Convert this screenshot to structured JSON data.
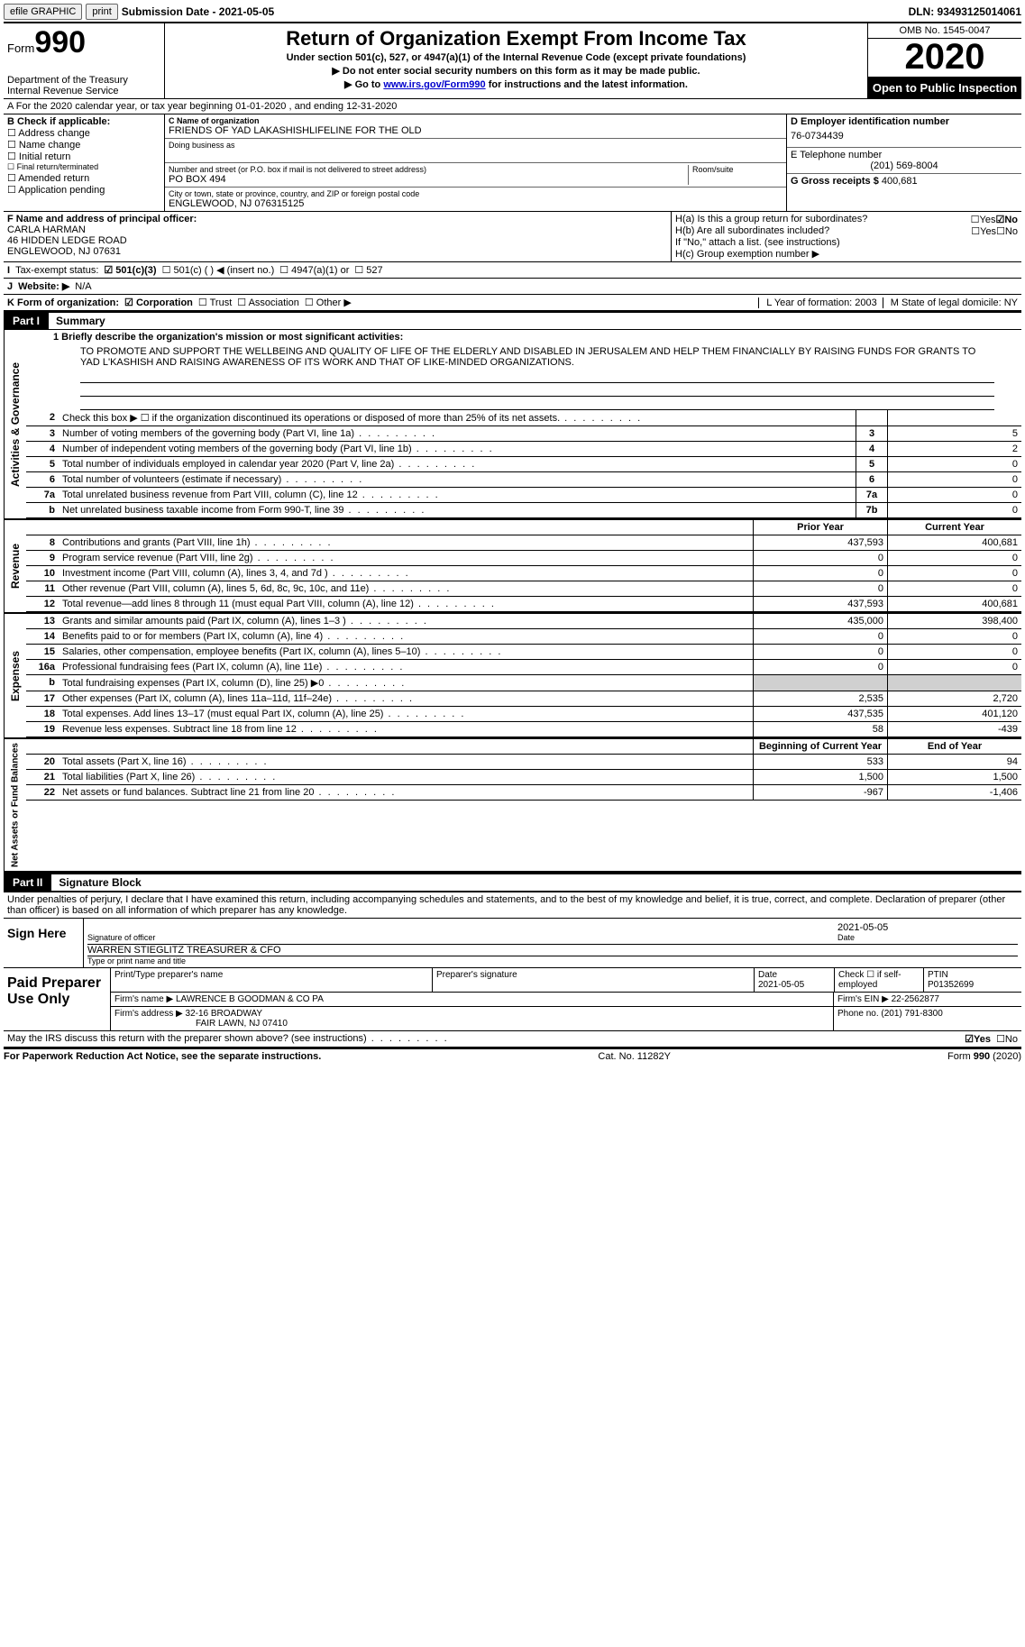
{
  "topbar": {
    "efile": "efile GRAPHIC",
    "print": "print",
    "submission": "Submission Date - 2021-05-05",
    "dln": "DLN: 93493125014061"
  },
  "header": {
    "form_label": "Form",
    "form_num": "990",
    "dept": "Department of the Treasury\nInternal Revenue Service",
    "title": "Return of Organization Exempt From Income Tax",
    "sub1": "Under section 501(c), 527, or 4947(a)(1) of the Internal Revenue Code (except private foundations)",
    "sub2": "▶ Do not enter social security numbers on this form as it may be made public.",
    "sub3_a": "▶ Go to ",
    "sub3_link": "www.irs.gov/Form990",
    "sub3_b": " for instructions and the latest information.",
    "omb": "OMB No. 1545-0047",
    "year": "2020",
    "inspect": "Open to Public Inspection"
  },
  "row_a": "A For the 2020 calendar year, or tax year beginning 01-01-2020    , and ending 12-31-2020",
  "box_b": {
    "label": "B Check if applicable:",
    "items": [
      "☐ Address change",
      "☐ Name change",
      "☐ Initial return",
      "☐ Final return/terminated",
      "☐ Amended return",
      "☐ Application pending"
    ]
  },
  "box_c": {
    "name_label": "C Name of organization",
    "name": "FRIENDS OF YAD LAKASHISHLIFELINE FOR THE OLD",
    "dba_label": "Doing business as",
    "addr_label": "Number and street (or P.O. box if mail is not delivered to street address)",
    "addr": "PO BOX 494",
    "room_label": "Room/suite",
    "city_label": "City or town, state or province, country, and ZIP or foreign postal code",
    "city": "ENGLEWOOD, NJ  076315125"
  },
  "box_d": {
    "label": "D Employer identification number",
    "ein": "76-0734439",
    "tel_label": "E Telephone number",
    "tel": "(201) 569-8004",
    "gross_label": "G Gross receipts $",
    "gross": "400,681"
  },
  "box_f": {
    "label": "F Name and address of principal officer:",
    "name": "CARLA HARMAN",
    "addr1": "46 HIDDEN LEDGE ROAD",
    "addr2": "ENGLEWOOD, NJ  07631"
  },
  "box_h": {
    "a_label": "H(a)  Is this a group return for subordinates?",
    "a_yes": "☐Yes",
    "a_no": "☑No",
    "b_label": "H(b)  Are all subordinates included?",
    "b_yes": "☐Yes",
    "b_no": "☐No",
    "note": "If \"No,\" attach a list. (see instructions)",
    "c_label": "H(c)  Group exemption number ▶"
  },
  "tax_status": {
    "i": "I",
    "label": "Tax-exempt status:",
    "c3": "☑ 501(c)(3)",
    "c": "☐  501(c) (  ) ◀ (insert no.)",
    "a1": "☐  4947(a)(1) or",
    "s527": "☐ 527"
  },
  "website": {
    "j": "J",
    "label": "Website: ▶",
    "val": "N/A"
  },
  "k_row": {
    "k": "K Form of organization:",
    "corp": "☑ Corporation",
    "trust": "☐ Trust",
    "assoc": "☐ Association",
    "other": "☐ Other ▶",
    "l": "L Year of formation: 2003",
    "m": "M State of legal domicile: NY"
  },
  "part1": {
    "num": "Part I",
    "title": "Summary"
  },
  "mission": {
    "label": "1   Briefly describe the organization's mission or most significant activities:",
    "text": "TO PROMOTE AND SUPPORT THE WELLBEING AND QUALITY OF LIFE OF THE ELDERLY AND DISABLED IN JERUSALEM AND HELP THEM FINANCIALLY BY RAISING FUNDS FOR GRANTS TO YAD L'KASHISH AND RAISING AWARENESS OF ITS WORK AND THAT OF LIKE-MINDED ORGANIZATIONS."
  },
  "gov_lines": [
    {
      "n": "2",
      "t": "Check this box ▶ ☐  if the organization discontinued its operations or disposed of more than 25% of its net assets.",
      "box": "",
      "v": ""
    },
    {
      "n": "3",
      "t": "Number of voting members of the governing body (Part VI, line 1a)",
      "box": "3",
      "v": "5"
    },
    {
      "n": "4",
      "t": "Number of independent voting members of the governing body (Part VI, line 1b)",
      "box": "4",
      "v": "2"
    },
    {
      "n": "5",
      "t": "Total number of individuals employed in calendar year 2020 (Part V, line 2a)",
      "box": "5",
      "v": "0"
    },
    {
      "n": "6",
      "t": "Total number of volunteers (estimate if necessary)",
      "box": "6",
      "v": "0"
    },
    {
      "n": "7a",
      "t": "Total unrelated business revenue from Part VIII, column (C), line 12",
      "box": "7a",
      "v": "0"
    },
    {
      "n": "b",
      "t": "Net unrelated business taxable income from Form 990-T, line 39",
      "box": "7b",
      "v": "0"
    }
  ],
  "rev_hdr": {
    "prior": "Prior Year",
    "current": "Current Year"
  },
  "rev_lines": [
    {
      "n": "8",
      "t": "Contributions and grants (Part VIII, line 1h)",
      "p": "437,593",
      "c": "400,681"
    },
    {
      "n": "9",
      "t": "Program service revenue (Part VIII, line 2g)",
      "p": "0",
      "c": "0"
    },
    {
      "n": "10",
      "t": "Investment income (Part VIII, column (A), lines 3, 4, and 7d )",
      "p": "0",
      "c": "0"
    },
    {
      "n": "11",
      "t": "Other revenue (Part VIII, column (A), lines 5, 6d, 8c, 9c, 10c, and 11e)",
      "p": "0",
      "c": "0"
    },
    {
      "n": "12",
      "t": "Total revenue—add lines 8 through 11 (must equal Part VIII, column (A), line 12)",
      "p": "437,593",
      "c": "400,681"
    }
  ],
  "exp_lines": [
    {
      "n": "13",
      "t": "Grants and similar amounts paid (Part IX, column (A), lines 1–3 )",
      "p": "435,000",
      "c": "398,400"
    },
    {
      "n": "14",
      "t": "Benefits paid to or for members (Part IX, column (A), line 4)",
      "p": "0",
      "c": "0"
    },
    {
      "n": "15",
      "t": "Salaries, other compensation, employee benefits (Part IX, column (A), lines 5–10)",
      "p": "0",
      "c": "0"
    },
    {
      "n": "16a",
      "t": "Professional fundraising fees (Part IX, column (A), line 11e)",
      "p": "0",
      "c": "0"
    },
    {
      "n": "b",
      "t": "Total fundraising expenses (Part IX, column (D), line 25) ▶0",
      "p": "",
      "c": "",
      "grey": true
    },
    {
      "n": "17",
      "t": "Other expenses (Part IX, column (A), lines 11a–11d, 11f–24e)",
      "p": "2,535",
      "c": "2,720"
    },
    {
      "n": "18",
      "t": "Total expenses. Add lines 13–17 (must equal Part IX, column (A), line 25)",
      "p": "437,535",
      "c": "401,120"
    },
    {
      "n": "19",
      "t": "Revenue less expenses. Subtract line 18 from line 12",
      "p": "58",
      "c": "-439"
    }
  ],
  "na_hdr": {
    "begin": "Beginning of Current Year",
    "end": "End of Year"
  },
  "na_lines": [
    {
      "n": "20",
      "t": "Total assets (Part X, line 16)",
      "p": "533",
      "c": "94"
    },
    {
      "n": "21",
      "t": "Total liabilities (Part X, line 26)",
      "p": "1,500",
      "c": "1,500"
    },
    {
      "n": "22",
      "t": "Net assets or fund balances. Subtract line 21 from line 20",
      "p": "-967",
      "c": "-1,406"
    }
  ],
  "part2": {
    "num": "Part II",
    "title": "Signature Block"
  },
  "sig": {
    "perjury": "Under penalties of perjury, I declare that I have examined this return, including accompanying schedules and statements, and to the best of my knowledge and belief, it is true, correct, and complete. Declaration of preparer (other than officer) is based on all information of which preparer has any knowledge.",
    "sign_here": "Sign Here",
    "sig_label": "Signature of officer",
    "date_label": "Date",
    "date": "2021-05-05",
    "name": "WARREN STIEGLITZ  TREASURER & CFO",
    "name_label": "Type or print name and title"
  },
  "prep": {
    "title": "Paid Preparer Use Only",
    "h_name": "Print/Type preparer's name",
    "h_sig": "Preparer's signature",
    "h_date": "Date",
    "date": "2021-05-05",
    "h_check": "Check ☐ if self-employed",
    "h_ptin": "PTIN",
    "ptin": "P01352699",
    "firm_label": "Firm's name    ▶",
    "firm": "LAWRENCE B GOODMAN & CO PA",
    "ein_label": "Firm's EIN ▶",
    "ein": "22-2562877",
    "addr_label": "Firm's address ▶",
    "addr1": "32-16 BROADWAY",
    "addr2": "FAIR LAWN, NJ  07410",
    "phone_label": "Phone no.",
    "phone": "(201) 791-8300"
  },
  "discuss": {
    "text": "May the IRS discuss this return with the preparer shown above? (see instructions)",
    "yes": "☑Yes",
    "no": "☐No"
  },
  "footer": {
    "left": "For Paperwork Reduction Act Notice, see the separate instructions.",
    "mid": "Cat. No. 11282Y",
    "right": "Form 990 (2020)"
  },
  "vtabs": {
    "gov": "Activities & Governance",
    "rev": "Revenue",
    "exp": "Expenses",
    "na": "Net Assets or Fund Balances"
  }
}
